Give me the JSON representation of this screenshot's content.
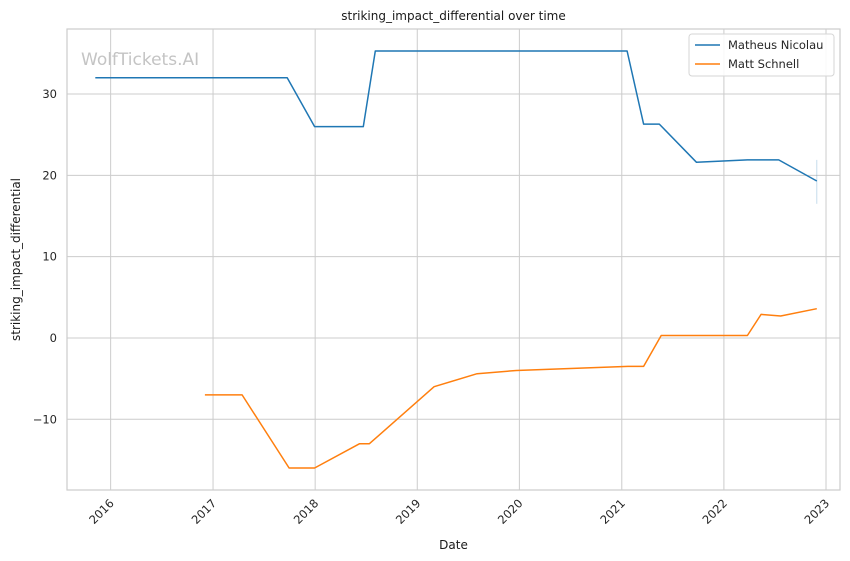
{
  "chart_data": {
    "type": "line",
    "title": "striking_impact_differential over time",
    "xlabel": "Date",
    "ylabel": "striking_impact_differential",
    "watermark": "WolfTickets.AI",
    "x_ticks": [
      "2016",
      "2017",
      "2018",
      "2019",
      "2020",
      "2021",
      "2022",
      "2023"
    ],
    "y_ticks": [
      -10,
      0,
      10,
      20,
      30
    ],
    "xlim": [
      "2015-07-29",
      "2023-02-20"
    ],
    "ylim": [
      -18.7,
      38.0
    ],
    "grid": true,
    "legend_position": "top-right",
    "series": [
      {
        "name": "Matheus Nicolau",
        "color": "#1f77b4",
        "points": [
          [
            "2015-11-07",
            32.0
          ],
          [
            "2017-09-23",
            32.0
          ],
          [
            "2017-12-30",
            26.0
          ],
          [
            "2018-06-22",
            26.0
          ],
          [
            "2018-08-04",
            35.3
          ],
          [
            "2021-01-20",
            35.3
          ],
          [
            "2021-03-20",
            26.3
          ],
          [
            "2021-05-15",
            26.3
          ],
          [
            "2021-09-25",
            21.6
          ],
          [
            "2022-03-26",
            21.9
          ],
          [
            "2022-07-16",
            21.9
          ],
          [
            "2022-11-29",
            19.3
          ]
        ],
        "error_bar": {
          "date": "2022-11-29",
          "low": 16.5,
          "high": 21.9
        }
      },
      {
        "name": "Matt Schnell",
        "color": "#ff7f0e",
        "points": [
          [
            "2016-12-03",
            -7.0
          ],
          [
            "2017-04-15",
            -7.0
          ],
          [
            "2017-09-30",
            -16.0
          ],
          [
            "2017-12-30",
            -16.0
          ],
          [
            "2018-06-09",
            -13.0
          ],
          [
            "2018-07-14",
            -13.0
          ],
          [
            "2019-03-02",
            -6.0
          ],
          [
            "2019-08-03",
            -4.4
          ],
          [
            "2019-12-21",
            -4.0
          ],
          [
            "2021-01-23",
            -3.5
          ],
          [
            "2021-03-20",
            -3.5
          ],
          [
            "2021-05-22",
            0.3
          ],
          [
            "2022-03-26",
            0.3
          ],
          [
            "2022-05-14",
            2.9
          ],
          [
            "2022-07-23",
            2.7
          ],
          [
            "2022-11-29",
            3.6
          ]
        ]
      }
    ]
  }
}
